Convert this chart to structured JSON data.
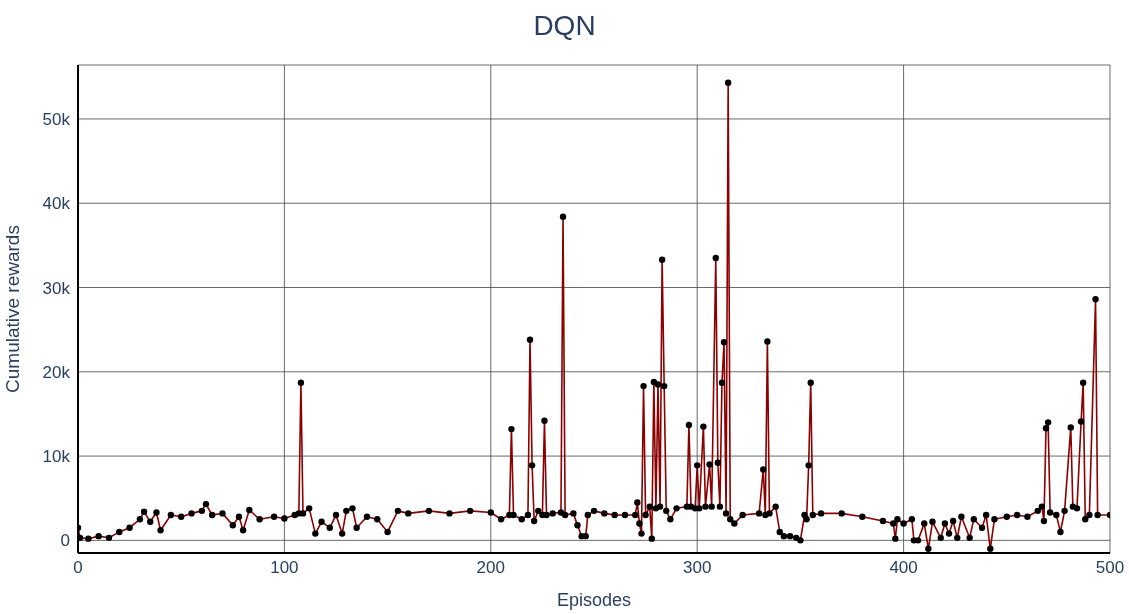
{
  "chart_data": {
    "type": "line",
    "title": "DQN",
    "xlabel": "Episodes",
    "ylabel": "Cumulative rewards",
    "x": [
      0,
      1,
      5,
      10,
      15,
      20,
      25,
      30,
      32,
      35,
      38,
      40,
      45,
      50,
      55,
      60,
      62,
      65,
      70,
      75,
      78,
      80,
      83,
      88,
      95,
      100,
      105,
      107,
      108,
      109,
      112,
      115,
      118,
      122,
      125,
      128,
      130,
      133,
      135,
      140,
      145,
      150,
      155,
      160,
      170,
      180,
      190,
      200,
      205,
      209,
      210,
      211,
      215,
      218,
      219,
      220,
      221,
      223,
      225,
      226,
      227,
      230,
      234,
      235,
      236,
      240,
      242,
      244,
      246,
      247,
      250,
      255,
      260,
      265,
      270,
      271,
      272,
      273,
      274,
      275,
      277,
      278,
      279,
      280,
      281,
      282,
      283,
      284,
      285,
      287,
      290,
      295,
      296,
      297,
      299,
      300,
      301,
      303,
      304,
      306,
      307,
      309,
      310,
      311,
      312,
      313,
      314,
      315,
      316,
      318,
      322,
      330,
      332,
      333,
      334,
      335,
      338,
      340,
      342,
      345,
      348,
      350,
      352,
      353,
      354,
      355,
      356,
      360,
      370,
      380,
      390,
      395,
      396,
      397,
      400,
      404,
      405,
      407,
      410,
      412,
      414,
      418,
      420,
      422,
      424,
      426,
      428,
      432,
      434,
      438,
      440,
      442,
      444,
      450,
      455,
      460,
      465,
      467,
      468,
      469,
      470,
      471,
      474,
      476,
      478,
      481,
      482,
      484,
      486,
      487,
      488,
      490,
      493,
      494,
      500
    ],
    "series": [
      {
        "color": "#8b0000",
        "values": [
          1500,
          300,
          200,
          500,
          300,
          1000,
          1500,
          2500,
          3400,
          2200,
          3300,
          1200,
          3000,
          2800,
          3200,
          3500,
          4300,
          3000,
          3200,
          1800,
          2800,
          1200,
          3600,
          2500,
          2800,
          2600,
          3000,
          3200,
          18700,
          3200,
          3800,
          800,
          2200,
          1500,
          3000,
          800,
          3500,
          3800,
          1500,
          2800,
          2500,
          1000,
          3500,
          3200,
          3500,
          3200,
          3500,
          3300,
          2500,
          3000,
          13200,
          3000,
          2500,
          3000,
          23800,
          8900,
          2300,
          3500,
          3000,
          14200,
          3000,
          3200,
          3300,
          38400,
          3000,
          3200,
          1800,
          500,
          500,
          3000,
          3500,
          3200,
          3000,
          3000,
          3000,
          4500,
          2000,
          800,
          18300,
          3000,
          4000,
          200,
          18800,
          3800,
          18500,
          4000,
          33300,
          18300,
          3500,
          2500,
          3800,
          4000,
          13700,
          4000,
          3800,
          8900,
          3800,
          13500,
          4000,
          9000,
          4000,
          33500,
          9200,
          4000,
          18700,
          23500,
          3200,
          54300,
          2500,
          2000,
          3000,
          3200,
          8400,
          3000,
          23600,
          3200,
          4000,
          1000,
          500,
          500,
          300,
          0,
          3000,
          2500,
          8900,
          18700,
          3000,
          3200,
          3200,
          2800,
          2300,
          2000,
          200,
          2500,
          2000,
          2500,
          0,
          0,
          2000,
          -1000,
          2200,
          300,
          2000,
          800,
          2300,
          300,
          2800,
          300,
          2500,
          1500,
          3000,
          -1000,
          2500,
          2800,
          3000,
          2800,
          3500,
          4000,
          2300,
          13300,
          14000,
          3300,
          3000,
          1000,
          3500,
          13400,
          4000,
          3800,
          14100,
          18700,
          2500,
          3000,
          28600,
          3000,
          3000
        ]
      }
    ],
    "xlim": [
      0,
      500
    ],
    "xticks": [
      0,
      100,
      200,
      300,
      400,
      500
    ],
    "ylim": [
      -1500,
      56400
    ],
    "yticks": [
      {
        "value": 0,
        "label": "0"
      },
      {
        "value": 10000,
        "label": "10k"
      },
      {
        "value": 20000,
        "label": "20k"
      },
      {
        "value": 30000,
        "label": "30k"
      },
      {
        "value": 40000,
        "label": "40k"
      },
      {
        "value": 50000,
        "label": "50k"
      }
    ],
    "grid": true,
    "marker": "circle",
    "line_style": "solid"
  }
}
